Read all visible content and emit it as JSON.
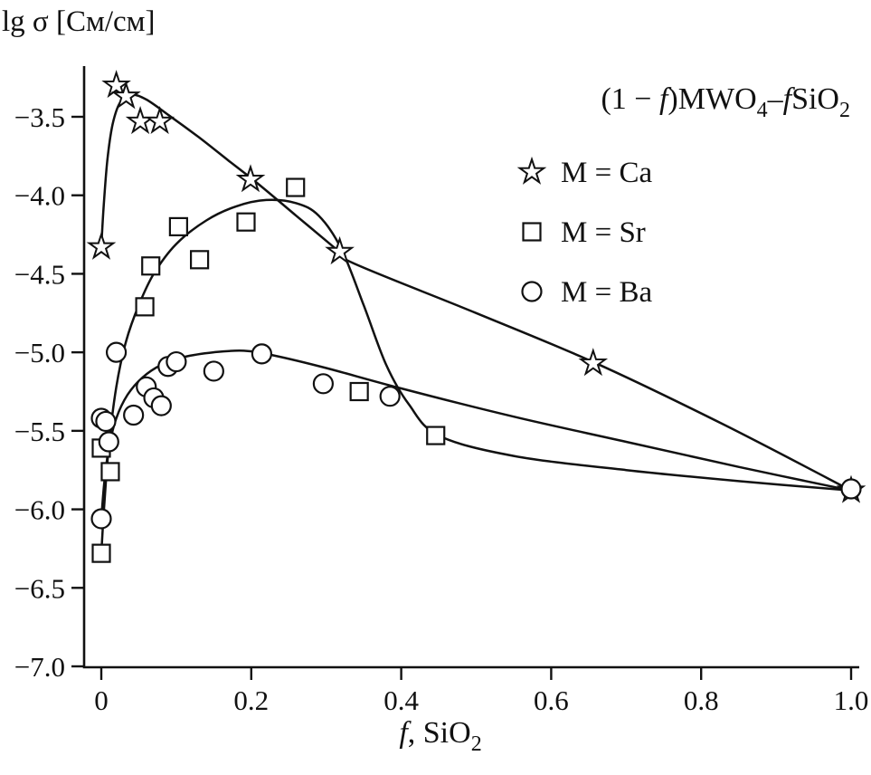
{
  "figure": {
    "background": "#ffffff",
    "stroke_color": "#111111"
  },
  "chart_data": {
    "type": "scatter",
    "title": "(1 − f)MWO4–fSiO2",
    "ylabel": "lg σ [См/см]",
    "xlabel": "f, SiO2",
    "xlabel_segments": [
      {
        "t": "f",
        "italic": true
      },
      {
        "t": ", SiO"
      },
      {
        "t": "2",
        "sub": true
      }
    ],
    "annotation_segments": [
      {
        "t": "(1 − "
      },
      {
        "t": "f",
        "italic": true
      },
      {
        "t": ")MWO"
      },
      {
        "t": "4",
        "sub": true
      },
      {
        "t": "–"
      },
      {
        "t": "f",
        "italic": true
      },
      {
        "t": "SiO"
      },
      {
        "t": "2",
        "sub": true
      }
    ],
    "xlim": [
      0,
      1.0
    ],
    "ylim": [
      -7.0,
      -3.2
    ],
    "grid": false,
    "legend_position": "top-right",
    "x_ticks": [
      "0",
      "0.2",
      "0.4",
      "0.6",
      "0.8",
      "1.0"
    ],
    "x_tick_values": [
      0,
      0.2,
      0.4,
      0.6,
      0.8,
      1.0
    ],
    "y_ticks": [
      "−3.5",
      "−4.0",
      "−4.5",
      "−5.0",
      "−5.5",
      "−6.0",
      "−6.5",
      "−7.0"
    ],
    "y_tick_values": [
      -3.5,
      -4.0,
      -4.5,
      -5.0,
      -5.5,
      -6.0,
      -6.5,
      -7.0
    ],
    "legend": [
      {
        "marker": "star",
        "label": "M = Ca"
      },
      {
        "marker": "square",
        "label": "M = Sr"
      },
      {
        "marker": "circle",
        "label": "M = Ba"
      }
    ],
    "series": [
      {
        "name": "M = Ca",
        "marker": "star",
        "points": [
          [
            0,
            -4.33
          ],
          [
            0.02,
            -3.3
          ],
          [
            0.033,
            -3.37
          ],
          [
            0.052,
            -3.53
          ],
          [
            0.078,
            -3.53
          ],
          [
            0.199,
            -3.9
          ],
          [
            0.318,
            -4.36
          ],
          [
            0.656,
            -5.07
          ],
          [
            1.0,
            -5.88
          ]
        ],
        "curve": [
          [
            0,
            -4.33
          ],
          [
            0.003,
            -4.08
          ],
          [
            0.008,
            -3.78
          ],
          [
            0.015,
            -3.55
          ],
          [
            0.025,
            -3.41
          ],
          [
            0.04,
            -3.36
          ],
          [
            0.06,
            -3.39
          ],
          [
            0.09,
            -3.49
          ],
          [
            0.13,
            -3.63
          ],
          [
            0.17,
            -3.78
          ],
          [
            0.21,
            -3.93
          ],
          [
            0.26,
            -4.13
          ],
          [
            0.31,
            -4.33
          ],
          [
            0.335,
            -4.43
          ],
          [
            0.5,
            -4.75
          ],
          [
            0.66,
            -5.07
          ],
          [
            0.83,
            -5.46
          ],
          [
            1.0,
            -5.88
          ]
        ]
      },
      {
        "name": "M = Sr",
        "marker": "square",
        "points": [
          [
            0,
            -6.28
          ],
          [
            0,
            -5.61
          ],
          [
            0.012,
            -5.76
          ],
          [
            0.058,
            -4.71
          ],
          [
            0.066,
            -4.45
          ],
          [
            0.103,
            -4.2
          ],
          [
            0.131,
            -4.41
          ],
          [
            0.193,
            -4.17
          ],
          [
            0.259,
            -3.95
          ],
          [
            0.344,
            -5.25
          ],
          [
            0.446,
            -5.53
          ]
        ],
        "curve": [
          [
            0,
            -6.28
          ],
          [
            0.004,
            -5.97
          ],
          [
            0.01,
            -5.6
          ],
          [
            0.02,
            -5.22
          ],
          [
            0.033,
            -4.93
          ],
          [
            0.05,
            -4.7
          ],
          [
            0.07,
            -4.5
          ],
          [
            0.1,
            -4.31
          ],
          [
            0.14,
            -4.16
          ],
          [
            0.18,
            -4.07
          ],
          [
            0.22,
            -4.03
          ],
          [
            0.26,
            -4.05
          ],
          [
            0.29,
            -4.13
          ],
          [
            0.32,
            -4.34
          ],
          [
            0.35,
            -4.7
          ],
          [
            0.38,
            -5.08
          ],
          [
            0.41,
            -5.33
          ],
          [
            0.45,
            -5.53
          ],
          [
            0.55,
            -5.66
          ],
          [
            0.7,
            -5.75
          ],
          [
            0.85,
            -5.82
          ],
          [
            1.0,
            -5.88
          ]
        ]
      },
      {
        "name": "M = Ba",
        "marker": "circle",
        "points": [
          [
            0,
            -5.42
          ],
          [
            0.006,
            -5.44
          ],
          [
            0,
            -6.06
          ],
          [
            0.01,
            -5.57
          ],
          [
            0.02,
            -5.0
          ],
          [
            0.043,
            -5.4
          ],
          [
            0.06,
            -5.22
          ],
          [
            0.07,
            -5.29
          ],
          [
            0.08,
            -5.34
          ],
          [
            0.089,
            -5.09
          ],
          [
            0.1,
            -5.06
          ],
          [
            0.15,
            -5.12
          ],
          [
            0.214,
            -5.01
          ],
          [
            0.296,
            -5.2
          ],
          [
            0.385,
            -5.28
          ],
          [
            1.0,
            -5.87
          ]
        ],
        "curve": [
          [
            0,
            -6.06
          ],
          [
            0.004,
            -5.83
          ],
          [
            0.01,
            -5.61
          ],
          [
            0.02,
            -5.42
          ],
          [
            0.035,
            -5.27
          ],
          [
            0.055,
            -5.16
          ],
          [
            0.08,
            -5.08
          ],
          [
            0.11,
            -5.03
          ],
          [
            0.15,
            -5.0
          ],
          [
            0.19,
            -4.99
          ],
          [
            0.23,
            -5.02
          ],
          [
            0.3,
            -5.1
          ],
          [
            0.4,
            -5.23
          ],
          [
            0.55,
            -5.41
          ],
          [
            0.7,
            -5.57
          ],
          [
            0.85,
            -5.73
          ],
          [
            1.0,
            -5.88
          ]
        ]
      }
    ]
  }
}
